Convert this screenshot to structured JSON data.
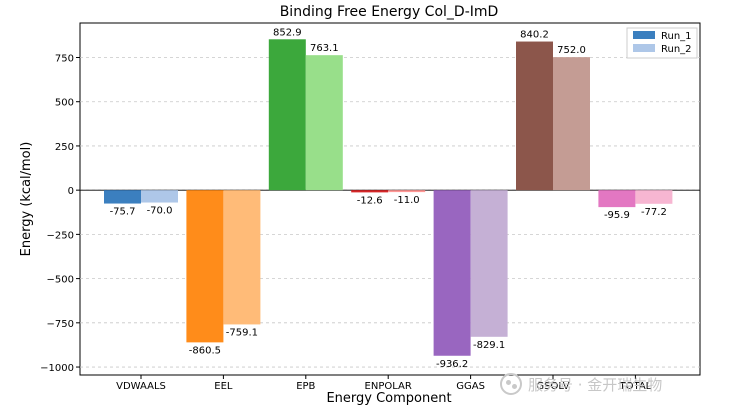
{
  "chart_data": {
    "type": "bar",
    "title": "Binding Free Energy Col_D-ImD",
    "xlabel": "Energy Component",
    "ylabel": "Energy (kcal/mol)",
    "categories": [
      "VDWAALS",
      "EEL",
      "EPB",
      "ENPOLAR",
      "GGAS",
      "GSOLV",
      "TOTAL"
    ],
    "series": [
      {
        "name": "Run_1",
        "values": [
          -75.7,
          -860.5,
          852.9,
          -12.6,
          -936.2,
          840.2,
          -95.9
        ]
      },
      {
        "name": "Run_2",
        "values": [
          -70.0,
          -759.1,
          763.1,
          -11.0,
          -829.1,
          752.0,
          -77.2
        ]
      }
    ],
    "data_labels": {
      "Run_1": [
        "-75.7",
        "-860.5",
        "852.9",
        "-12.6",
        "-936.2",
        "840.2",
        "-95.9"
      ],
      "Run_2": [
        "-70.0",
        "-759.1",
        "763.1",
        "-11.0",
        "-829.1",
        "752.0",
        "-77.2"
      ]
    },
    "y_ticks": [
      -1000,
      -750,
      -500,
      -250,
      0,
      250,
      500,
      750
    ],
    "y_tick_labels": [
      "−1000",
      "−750",
      "−500",
      "−250",
      "0",
      "250",
      "500",
      "750"
    ],
    "ylim": [
      -1045,
      945
    ],
    "grid": "y-dashed",
    "legend_position": "top-right",
    "colors": {
      "Run_1": [
        "#3b7fbf",
        "#ff8c1a",
        "#3ca83c",
        "#d62728",
        "#9966c0",
        "#8c564b",
        "#e377c2"
      ],
      "Run_2": [
        "#aec7e8",
        "#ffbb78",
        "#98df8a",
        "#ff9896",
        "#c5b0d5",
        "#c49c94",
        "#f7b6d2"
      ],
      "legend": [
        "#3b7fbf",
        "#aec7e8"
      ]
    }
  },
  "watermark": {
    "text": "服务号 · 金开瑞生物",
    "icon": "wechat-icon"
  }
}
